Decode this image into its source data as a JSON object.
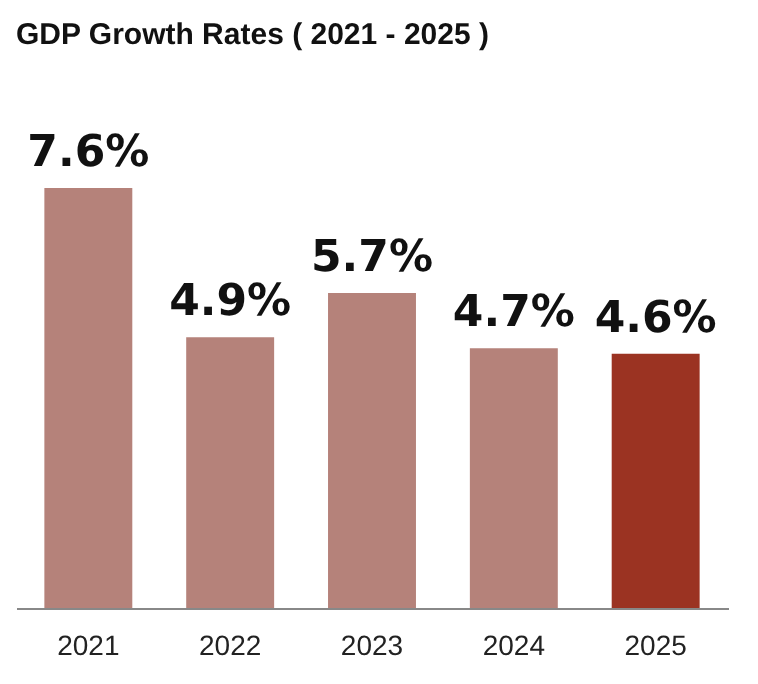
{
  "chart_data": {
    "type": "bar",
    "title": "GDP Growth Rates ( 2021 - 2025 )",
    "categories": [
      "2021",
      "2022",
      "2023",
      "2024",
      "2025"
    ],
    "values": [
      7.6,
      4.9,
      5.7,
      4.7,
      4.6
    ],
    "colors": [
      "#b5827a",
      "#b5827a",
      "#b5827a",
      "#b5827a",
      "#9b3322"
    ],
    "value_labels": [
      "7.6%",
      "4.9%",
      "5.7%",
      "4.7%",
      "4.6%"
    ]
  }
}
